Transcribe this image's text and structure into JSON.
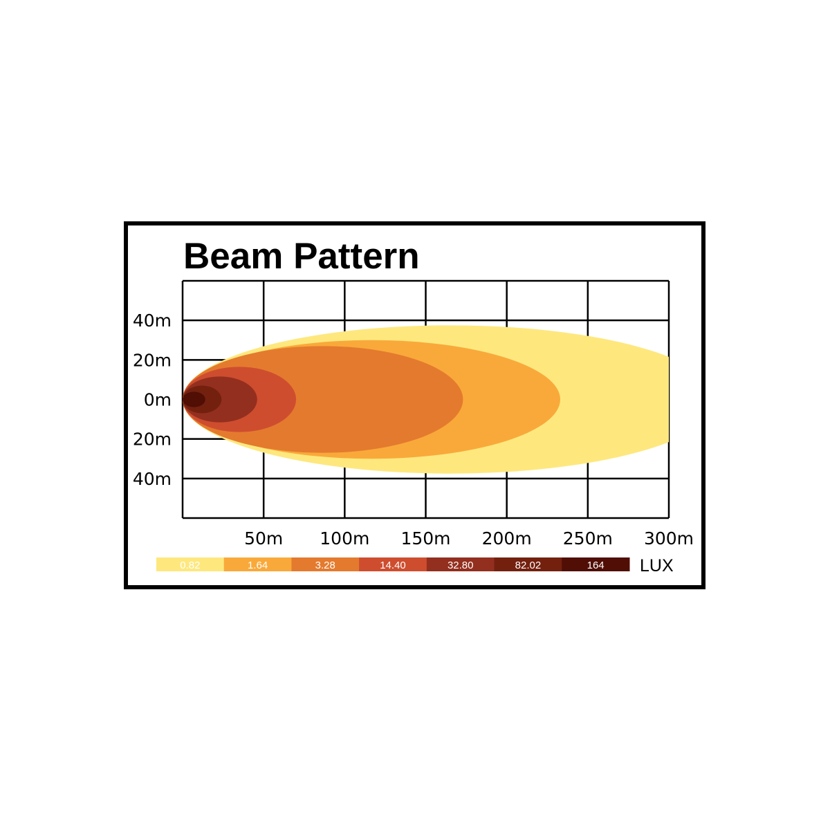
{
  "chart_data": {
    "type": "area",
    "title": "Beam Pattern",
    "xlabel": "",
    "ylabel": "",
    "xlim": [
      0,
      300
    ],
    "ylim": [
      -60,
      60
    ],
    "x_ticks": [
      "50m",
      "100m",
      "150m",
      "200m",
      "250m",
      "300m"
    ],
    "y_ticks": [
      "40m",
      "20m",
      "0m",
      "20m",
      "40m"
    ],
    "grid": true,
    "series": [
      {
        "name": "0.82",
        "reach_m": 330,
        "half_width_m": 37.5,
        "color": "#FEE87E"
      },
      {
        "name": "1.64",
        "reach_m": 233,
        "half_width_m": 30,
        "color": "#F9A93A"
      },
      {
        "name": "3.28",
        "reach_m": 173,
        "half_width_m": 27,
        "color": "#E47A2E"
      },
      {
        "name": "14.40",
        "reach_m": 70,
        "half_width_m": 16.5,
        "color": "#CE4D2F"
      },
      {
        "name": "32.80",
        "reach_m": 46,
        "half_width_m": 11.6,
        "color": "#932F1E"
      },
      {
        "name": "82.02",
        "reach_m": 24,
        "half_width_m": 7,
        "color": "#73200F"
      },
      {
        "name": "164",
        "reach_m": 14,
        "half_width_m": 3.9,
        "color": "#500E04"
      }
    ],
    "legend_unit": "LUX",
    "legend_placement": "bottom"
  }
}
